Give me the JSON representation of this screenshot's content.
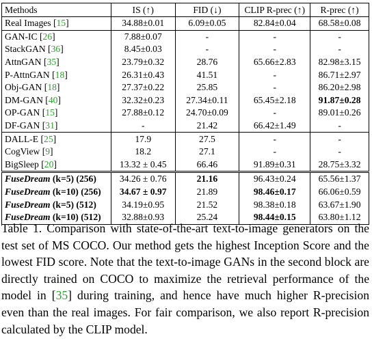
{
  "table": {
    "headers": [
      "Methods",
      "IS (↑)",
      "FID (↓)",
      "CLIP R-prec (↑)",
      "R-prec (↑)"
    ],
    "rows": [
      {
        "method": "Real Images",
        "cite": "15",
        "is": "34.88±0.01",
        "fid": "6.09±0.05",
        "clip": "82.84±0.04",
        "rprec": "68.58±0.08"
      },
      {
        "method": "GAN-IC",
        "cite": "26",
        "is": "7.88±0.07",
        "fid": "-",
        "clip": "-",
        "rprec": "-"
      },
      {
        "method": "StackGAN",
        "cite": "36",
        "is": "8.45±0.03",
        "fid": "-",
        "clip": "-",
        "rprec": "-"
      },
      {
        "method": "AttnGAN",
        "cite": "35",
        "is": "23.79±0.32",
        "fid": "28.76",
        "clip": "65.66±2.83",
        "rprec": "82.98±3.15"
      },
      {
        "method": "P-AttnGAN",
        "cite": "18",
        "is": "26.31±0.43",
        "fid": "41.51",
        "clip": "-",
        "rprec": "86.71±2.97"
      },
      {
        "method": "Obj-GAN",
        "cite": "18",
        "is": "27.37±0.22",
        "fid": "25.85",
        "clip": "-",
        "rprec": "86.20±2.98"
      },
      {
        "method": "DM-GAN",
        "cite": "40",
        "is": "32.32±0.23",
        "fid": "27.34±0.11",
        "clip": "65.45±2.18",
        "rprec": "91.87±0.28"
      },
      {
        "method": "OP-GAN",
        "cite": "15",
        "is": "27.88±0.12",
        "fid": "24.70±0.09",
        "clip": "-",
        "rprec": "89.01±0.26"
      },
      {
        "method": "DF-GAN",
        "cite": "31",
        "is": "-",
        "fid": "21.42",
        "clip": "66.42±1.49",
        "rprec": "-"
      },
      {
        "method": "DALL-E",
        "cite": "25",
        "is": "17.9",
        "fid": "27.5",
        "clip": "-",
        "rprec": "-"
      },
      {
        "method": "CogView",
        "cite": "9",
        "is": "18.2",
        "fid": "27.1",
        "clip": "-",
        "rprec": "-"
      },
      {
        "method": "BigSleep",
        "cite": "20",
        "is": "13.32 ± 0.45",
        "fid": "66.46",
        "clip": "91.89±0.31",
        "rprec": "28.75±3.32"
      },
      {
        "method": "FuseDream",
        "suffix": "(k=5) (256)",
        "is": "34.26 ± 0.76",
        "fid": "21.16",
        "clip": "96.43±0.24",
        "rprec": "65.56±1.37"
      },
      {
        "method": "FuseDream",
        "suffix": "(k=10) (256)",
        "is": "34.67 ± 0.97",
        "fid": "21.89",
        "clip": "98.46±0.17",
        "rprec": "66.06±0.59"
      },
      {
        "method": "FuseDream",
        "suffix": "(k=5) (512)",
        "is": "34.19±0.95",
        "fid": "21.52",
        "clip": "98.38±0.18",
        "rprec": "63.67±1.90"
      },
      {
        "method": "FuseDream",
        "suffix": "(k=10) (512)",
        "is": "32.88±0.93",
        "fid": "25.24",
        "clip": "98.44±0.15",
        "rprec": "63.80±1.12"
      }
    ]
  },
  "caption": {
    "part1": "Table 1.  Comparison with state-of-the-art text-to-image generators on the test set of MS COCO. Our method gets the highest Inception Score and the lowest FID score.  Note that the text-to-image GANs in the second block are directly trained on COCO to maximize the retrieval performance of the model in ",
    "cite": "35",
    "part2": " during training, and hence have much higher R-precision even than the real images.  For fair comparison, we also report R-precision calculated by the CLIP model."
  }
}
